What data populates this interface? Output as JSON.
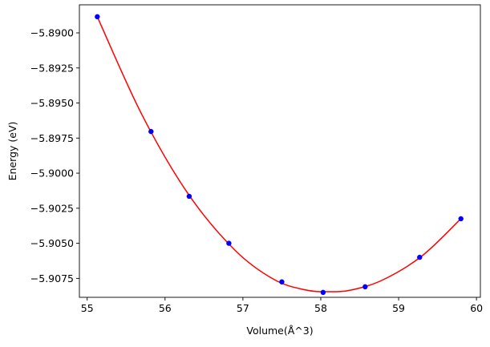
{
  "chart_data": {
    "type": "scatter",
    "title": "",
    "xlabel": "Volume(Å^3)",
    "ylabel": "Energy (eV)",
    "xlim": [
      54.9,
      60.05
    ],
    "ylim": [
      -5.90885,
      -5.888
    ],
    "x_ticks": [
      55,
      56,
      57,
      58,
      59,
      60
    ],
    "x_tick_labels": [
      "55",
      "56",
      "57",
      "58",
      "59",
      "60"
    ],
    "y_ticks": [
      -5.89,
      -5.8925,
      -5.895,
      -5.8975,
      -5.9,
      -5.9025,
      -5.905,
      -5.9075
    ],
    "y_tick_labels": [
      "−5.8900",
      "−5.8925",
      "−5.8950",
      "−5.8975",
      "−5.9000",
      "−5.9025",
      "−5.9050",
      "−5.9075"
    ],
    "grid": false,
    "legend": "none",
    "series": [
      {
        "kind": "points",
        "color": "#0000ff",
        "x": [
          55.13,
          55.82,
          56.31,
          56.82,
          57.5,
          58.03,
          58.57,
          59.27,
          59.8
        ],
        "y": [
          -5.88885,
          -5.89703,
          -5.90165,
          -5.905,
          -5.90775,
          -5.9085,
          -5.9081,
          -5.906,
          -5.90325
        ]
      },
      {
        "kind": "fit-curve",
        "color": "#ff0000",
        "x": [
          55.13,
          55.7,
          56.3,
          56.9,
          57.4,
          57.8,
          58.1,
          58.4,
          58.8,
          59.3,
          59.8
        ],
        "y": [
          -5.88885,
          -5.8958,
          -5.9015,
          -5.9055,
          -5.90758,
          -5.90832,
          -5.90845,
          -5.90832,
          -5.9076,
          -5.9059,
          -5.90325
        ]
      }
    ]
  }
}
